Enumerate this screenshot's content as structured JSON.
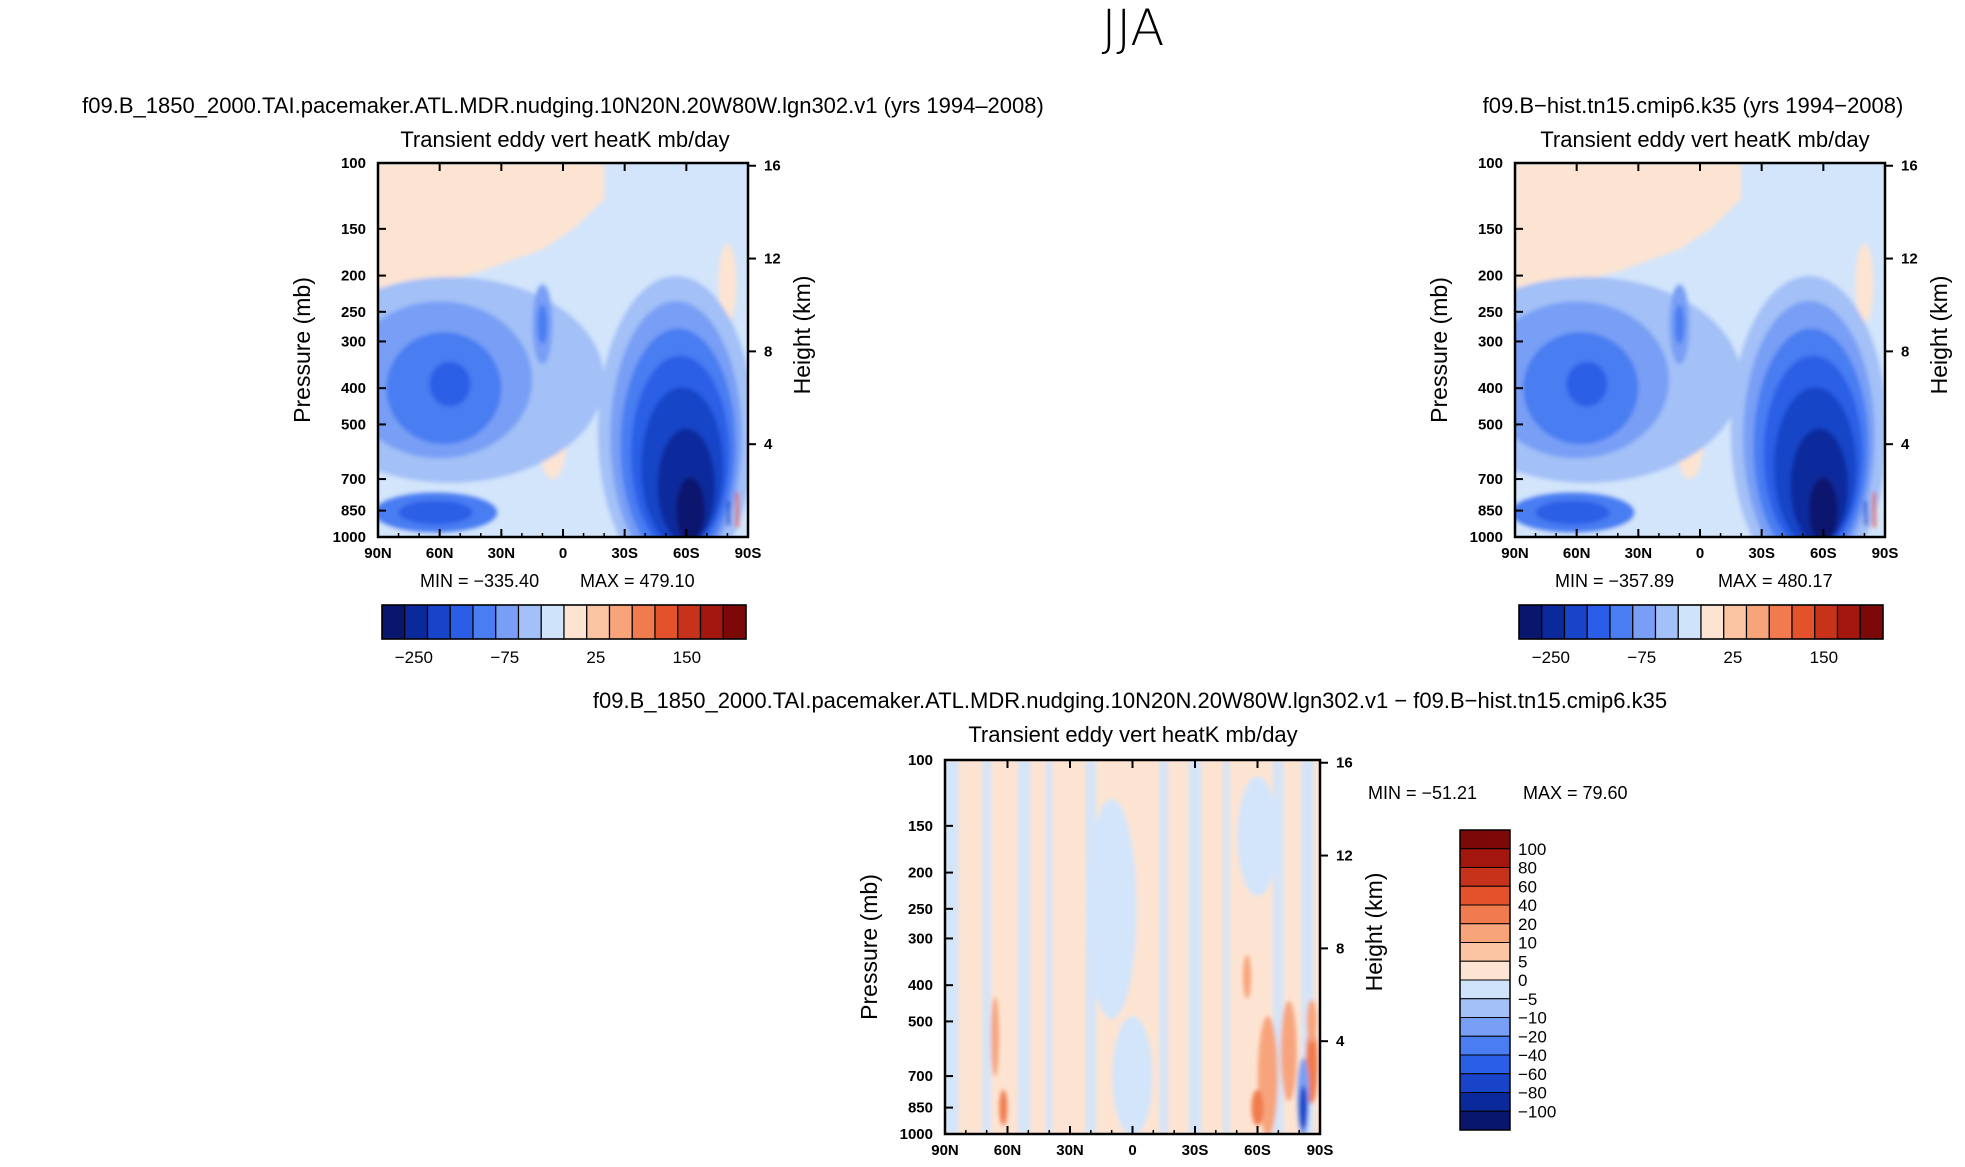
{
  "suptitle": "JJA",
  "colors": {
    "diverging": [
      "#08166e",
      "#0a2a9c",
      "#1744c8",
      "#2b5ee6",
      "#4a7df2",
      "#789ff5",
      "#a3c0f7",
      "#cfe3fb",
      "#fde4d2",
      "#fbc5a4",
      "#f7a47b",
      "#f07b4e",
      "#e3522b",
      "#c6321a",
      "#a3170f",
      "#7d0808"
    ],
    "light_blue": "#d3e5fb",
    "light_orange": "#fde4d2"
  },
  "chart_data": [
    {
      "id": "panel-left",
      "type": "heatmap",
      "experiment": "f09.B_1850_2000.TAI.pacemaker.ATL.MDR.nudging.10N20N.20W80W.lgn302.v1 (yrs 1994–2008)",
      "title": "Transient eddy vert heatK mb/day",
      "xlabel": "",
      "ylabel": "Pressure (mb)",
      "ylabel_right": "Height (km)",
      "xticks": [
        "90N",
        "60N",
        "30N",
        "0",
        "30S",
        "60S",
        "90S"
      ],
      "yticks_pressure": [
        100,
        150,
        200,
        250,
        300,
        400,
        500,
        700,
        850,
        1000
      ],
      "yticks_height": [
        16,
        12,
        8,
        4
      ],
      "xlim": [
        90,
        -90
      ],
      "ylim": [
        1000,
        100
      ],
      "min_label": "MIN = −335.40",
      "max_label": "MAX = 479.10",
      "colorbar_ticks": [
        "−250",
        "−75",
        "25",
        "150"
      ],
      "colorbar_colors": 16
    },
    {
      "id": "panel-right",
      "type": "heatmap",
      "experiment": "f09.B−hist.tn15.cmip6.k35 (yrs 1994−2008)",
      "title": "Transient eddy vert heatK mb/day",
      "xlabel": "",
      "ylabel": "Pressure (mb)",
      "ylabel_right": "Height (km)",
      "xticks": [
        "90N",
        "60N",
        "30N",
        "0",
        "30S",
        "60S",
        "90S"
      ],
      "yticks_pressure": [
        100,
        150,
        200,
        250,
        300,
        400,
        500,
        700,
        850,
        1000
      ],
      "yticks_height": [
        16,
        12,
        8,
        4
      ],
      "xlim": [
        90,
        -90
      ],
      "ylim": [
        1000,
        100
      ],
      "min_label": "MIN = −357.89",
      "max_label": "MAX = 480.17",
      "colorbar_ticks": [
        "−250",
        "−75",
        "25",
        "150"
      ],
      "colorbar_colors": 16
    },
    {
      "id": "panel-diff",
      "type": "heatmap",
      "experiment": "f09.B_1850_2000.TAI.pacemaker.ATL.MDR.nudging.10N20N.20W80W.lgn302.v1 − f09.B−hist.tn15.cmip6.k35",
      "title": "Transient eddy vert heatK mb/day",
      "xlabel": "",
      "ylabel": "Pressure (mb)",
      "ylabel_right": "Height (km)",
      "xticks": [
        "90N",
        "60N",
        "30N",
        "0",
        "30S",
        "60S",
        "90S"
      ],
      "yticks_pressure": [
        100,
        150,
        200,
        250,
        300,
        400,
        500,
        700,
        850,
        1000
      ],
      "yticks_height": [
        16,
        12,
        8,
        4
      ],
      "xlim": [
        90,
        -90
      ],
      "ylim": [
        1000,
        100
      ],
      "min_label": "MIN = −51.21",
      "max_label": "MAX =  79.60",
      "colorbar_levels": [
        "100",
        "80",
        "60",
        "40",
        "20",
        "10",
        "5",
        "0",
        "−5",
        "−10",
        "−20",
        "−40",
        "−60",
        "−80",
        "−100"
      ]
    }
  ]
}
